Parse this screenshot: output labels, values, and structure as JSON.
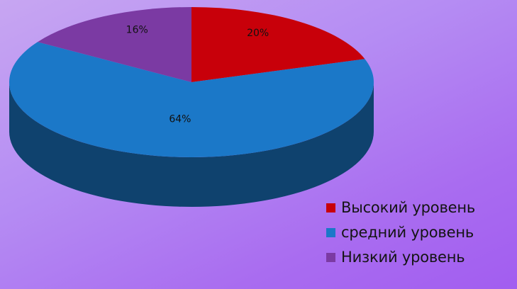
{
  "chart_data": {
    "type": "pie",
    "style": "3d",
    "slices": [
      {
        "label": "Высокий уровень",
        "value": 20,
        "value_label": "20%",
        "color": "#c8000a"
      },
      {
        "label": "средний уровень",
        "value": 64,
        "value_label": "64%",
        "color": "#1b78c8"
      },
      {
        "label": "Низкий уровень",
        "value": 16,
        "value_label": "16%",
        "color": "#7b3aa3"
      }
    ],
    "legend_position": "bottom-right"
  }
}
